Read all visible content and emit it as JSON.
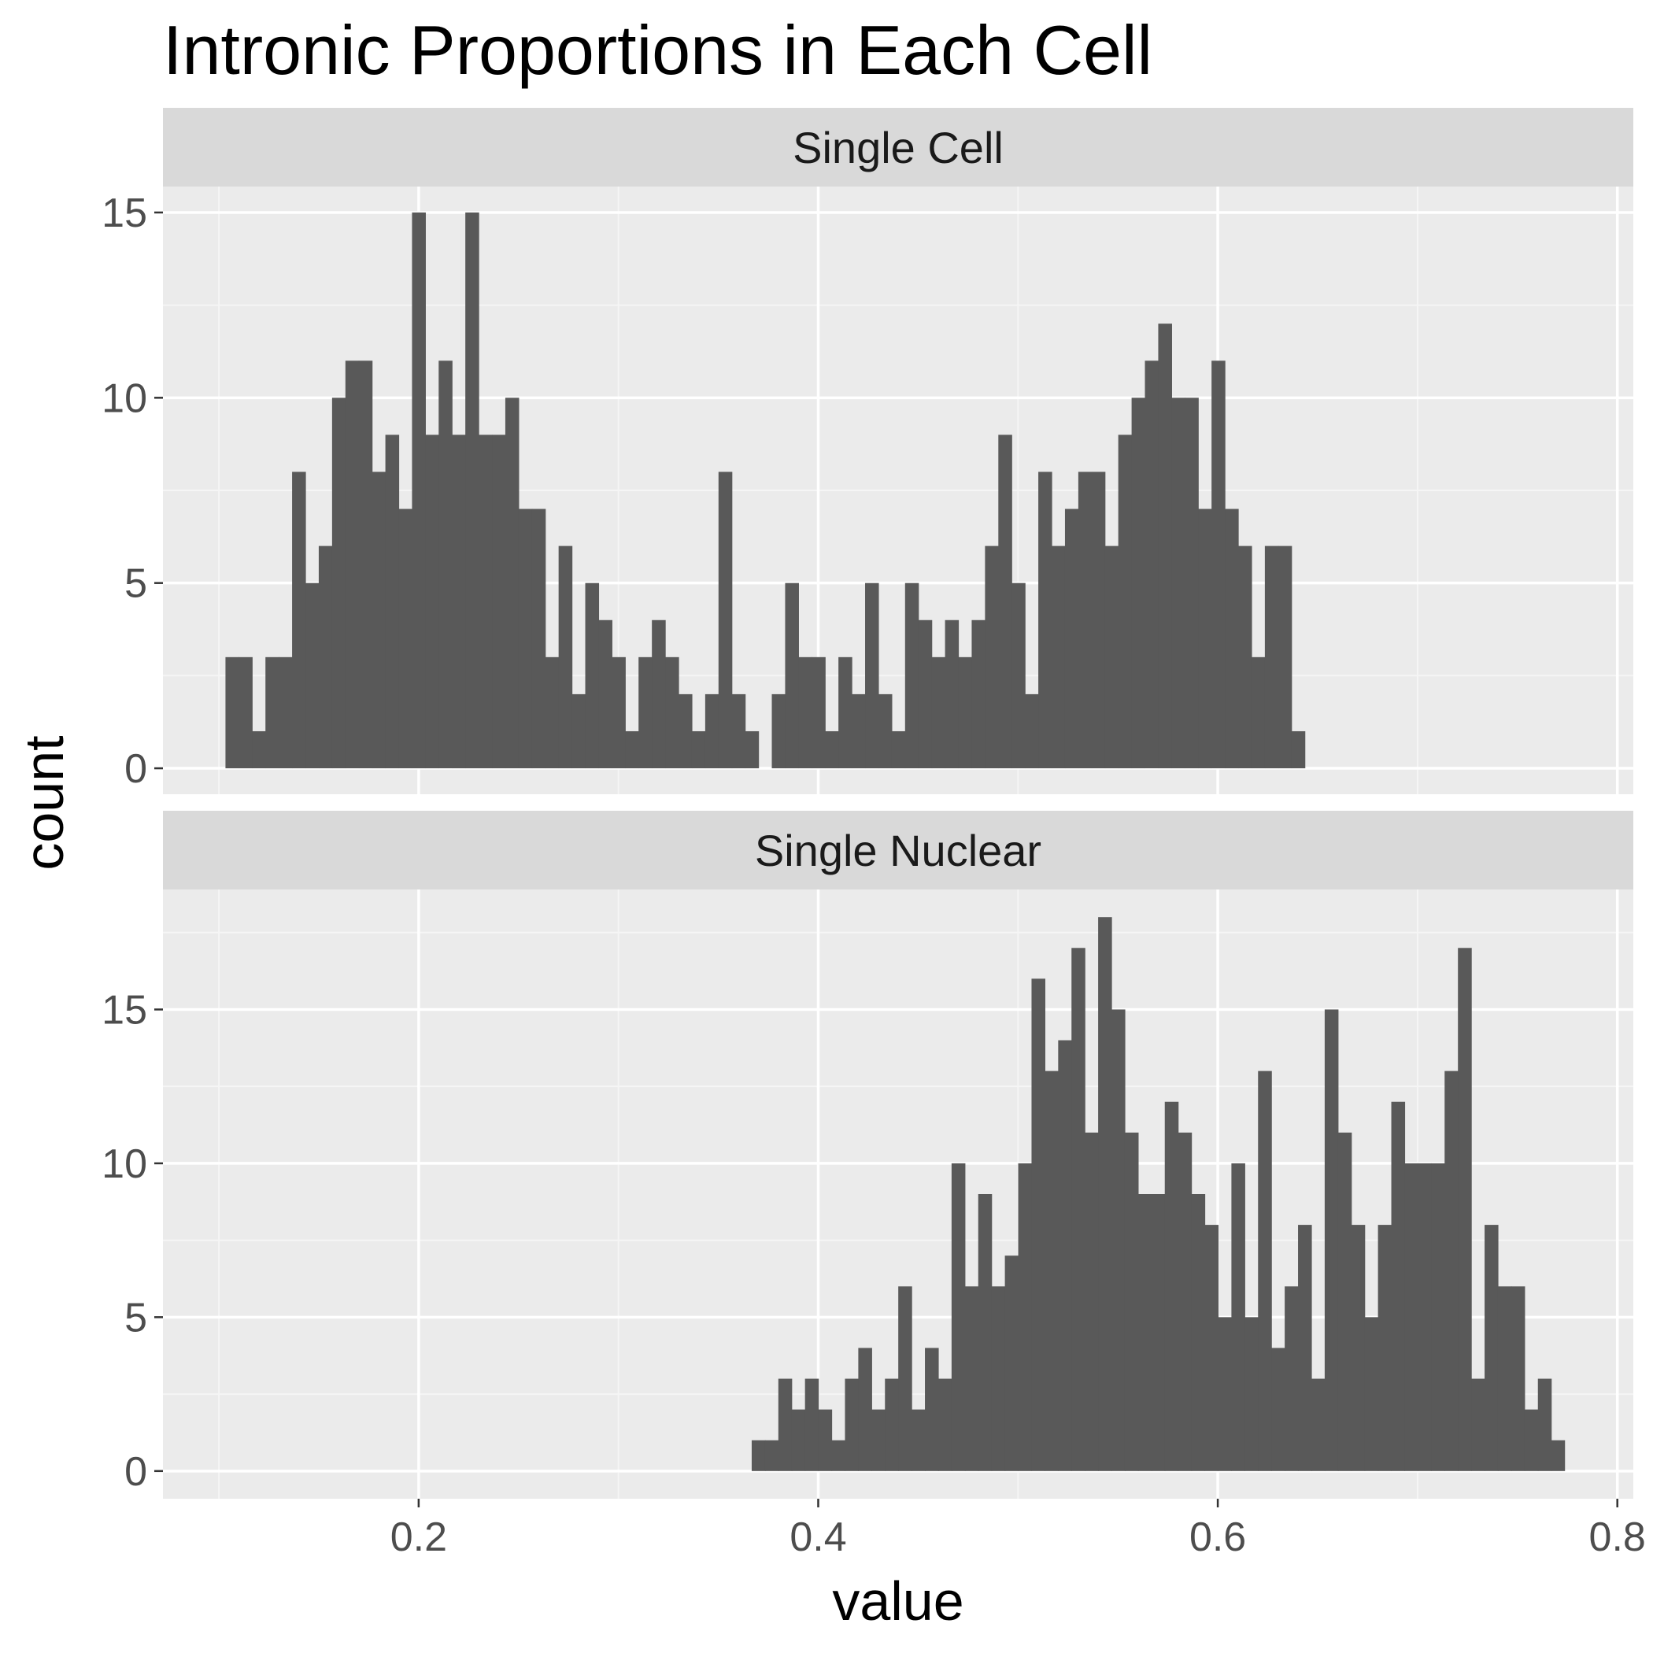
{
  "colors": {
    "panel_background": "#EBEBEB",
    "strip_background": "#D9D9D9",
    "grid_major": "#FFFFFF",
    "grid_minor": "#F5F5F5",
    "bar_fill": "#595959",
    "tick_color": "#333333"
  },
  "chart_data": {
    "type": "bar",
    "subtype": "faceted-histogram",
    "title": "Intronic Proportions in Each Cell",
    "xlabel": "value",
    "ylabel": "count",
    "xlim": [
      0.072,
      0.808
    ],
    "x_ticks": [
      0.2,
      0.4,
      0.6,
      0.8
    ],
    "x_tick_labels": [
      "0.2",
      "0.4",
      "0.6",
      "0.8"
    ],
    "bin_width": 0.00667,
    "grid": true,
    "facets": [
      {
        "label": "Single Cell",
        "ylim": [
          -0.7,
          15.7
        ],
        "y_ticks": [
          0,
          5,
          10,
          15
        ],
        "y_tick_labels": [
          "0",
          "5",
          "10",
          "15"
        ],
        "bin_start": 0.1033,
        "counts": [
          3,
          3,
          1,
          3,
          3,
          8,
          5,
          6,
          10,
          11,
          11,
          8,
          9,
          7,
          15,
          9,
          11,
          9,
          15,
          9,
          9,
          10,
          7,
          7,
          3,
          6,
          2,
          5,
          4,
          3,
          1,
          3,
          4,
          3,
          2,
          1,
          2,
          8,
          2,
          1,
          0,
          2,
          5,
          3,
          3,
          1,
          3,
          2,
          5,
          2,
          1,
          5,
          4,
          3,
          4,
          3,
          4,
          6,
          9,
          5,
          2,
          8,
          6,
          7,
          8,
          8,
          6,
          9,
          10,
          11,
          12,
          10,
          10,
          7,
          11,
          7,
          6,
          3,
          6,
          6,
          1
        ]
      },
      {
        "label": "Single Nuclear",
        "ylim": [
          -0.9,
          18.9
        ],
        "y_ticks": [
          0,
          5,
          10,
          15
        ],
        "y_tick_labels": [
          "0",
          "5",
          "10",
          "15"
        ],
        "bin_start": 0.3667,
        "counts": [
          1,
          1,
          3,
          2,
          3,
          2,
          1,
          3,
          4,
          2,
          3,
          6,
          2,
          4,
          3,
          10,
          6,
          9,
          6,
          7,
          10,
          16,
          13,
          14,
          17,
          11,
          18,
          15,
          11,
          9,
          9,
          12,
          11,
          9,
          8,
          5,
          10,
          5,
          13,
          4,
          6,
          8,
          3,
          15,
          11,
          8,
          5,
          8,
          12,
          10,
          10,
          10,
          13,
          17,
          3,
          8,
          6,
          6,
          2,
          3,
          1
        ]
      }
    ]
  }
}
